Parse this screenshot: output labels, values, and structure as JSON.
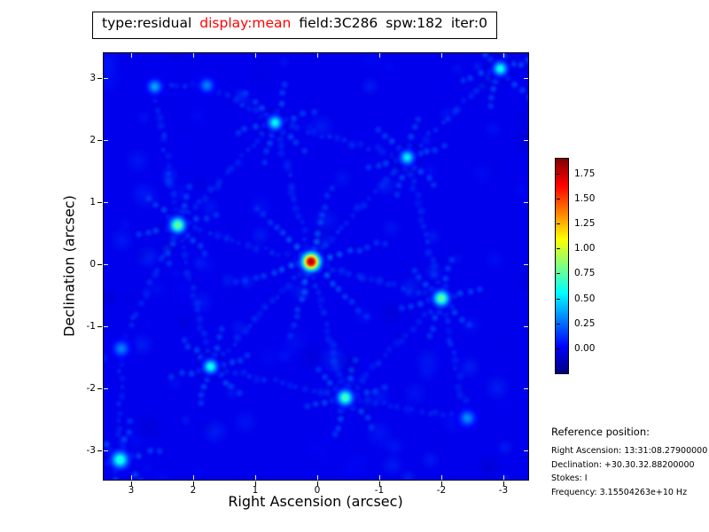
{
  "title": {
    "segments": [
      {
        "text": "type:residual",
        "color": "#000000"
      },
      {
        "text": "display:mean",
        "color": "#ff0000"
      },
      {
        "text": "field:3C286",
        "color": "#000000"
      },
      {
        "text": "spw:182",
        "color": "#000000"
      },
      {
        "text": "iter:0",
        "color": "#000000"
      }
    ]
  },
  "axes": {
    "xlabel": "Right Ascension (arcsec)",
    "ylabel": "Declination (arcsec)",
    "x_ticks": [
      3,
      2,
      1,
      0,
      -1,
      -2,
      -3
    ],
    "y_ticks": [
      3,
      2,
      1,
      0,
      -1,
      -2,
      -3
    ]
  },
  "colorbar": {
    "tick_labels": [
      "1.75",
      "1.50",
      "1.25",
      "1.00",
      "0.75",
      "0.50",
      "0.25",
      "0.00"
    ],
    "tick_values": [
      1.75,
      1.5,
      1.25,
      1.0,
      0.75,
      0.5,
      0.25,
      0.0
    ],
    "colormap": "jet",
    "vmin": -0.25,
    "vmax": 1.9
  },
  "reference": {
    "heading": "Reference position:",
    "lines": [
      "Right Ascension: 13:31:08.27900000",
      "Declination: +30.30.32.88200000",
      "Stokes: I",
      "Frequency: 3.15504263e+10 Hz"
    ]
  },
  "chart_data": {
    "type": "heatmap",
    "title": "type:residual display:mean field:3C286 spw:182 iter:0",
    "xlabel": "Right Ascension (arcsec)",
    "ylabel": "Declination (arcsec)",
    "xlim": [
      3.443,
      -3.4
    ],
    "ylim": [
      -3.471,
      3.4
    ],
    "x_ticks": [
      3,
      2,
      1,
      0,
      -1,
      -2,
      -3
    ],
    "y_ticks": [
      3,
      2,
      1,
      0,
      -1,
      -2,
      -3
    ],
    "colormap": "jet",
    "value_range": [
      -0.25,
      1.9
    ],
    "background_value": -0.02,
    "description": "Interferometric residual map: bright peak at field center with hexagonal lattice of sidelobe grating lobes over blue noise background",
    "sources": [
      {
        "ra": 0.1,
        "dec": 0.04,
        "peak": 1.9,
        "sigma": 6.0
      },
      {
        "ra": 2.25,
        "dec": 0.63,
        "peak": 0.82,
        "sigma": 5.5
      },
      {
        "ra": -2.0,
        "dec": -0.55,
        "peak": 0.8,
        "sigma": 5.5
      },
      {
        "ra": -0.45,
        "dec": -2.15,
        "peak": 0.74,
        "sigma": 5.5
      },
      {
        "ra": 1.72,
        "dec": -1.65,
        "peak": 0.62,
        "sigma": 5.0
      },
      {
        "ra": 0.68,
        "dec": 2.28,
        "peak": 0.58,
        "sigma": 5.0
      },
      {
        "ra": -1.45,
        "dec": 1.72,
        "peak": 0.55,
        "sigma": 5.0
      },
      {
        "ra": 3.18,
        "dec": -3.15,
        "peak": 0.66,
        "sigma": 6.0
      },
      {
        "ra": -2.95,
        "dec": 3.15,
        "peak": 0.6,
        "sigma": 5.0
      },
      {
        "ra": 2.62,
        "dec": 2.86,
        "peak": 0.38,
        "sigma": 5.0
      },
      {
        "ra": -2.42,
        "dec": -2.48,
        "peak": 0.33,
        "sigma": 5.5
      },
      {
        "ra": 1.78,
        "dec": 2.88,
        "peak": 0.3,
        "sigma": 5.0
      },
      {
        "ra": 3.16,
        "dec": -1.36,
        "peak": 0.3,
        "sigma": 5.5
      }
    ],
    "links": [
      [
        0,
        1
      ],
      [
        0,
        2
      ],
      [
        0,
        3
      ],
      [
        0,
        4
      ],
      [
        0,
        5
      ],
      [
        0,
        6
      ],
      [
        1,
        5
      ],
      [
        1,
        4
      ],
      [
        5,
        6
      ],
      [
        6,
        8
      ],
      [
        2,
        3
      ],
      [
        3,
        4
      ],
      [
        2,
        6
      ],
      [
        2,
        10
      ],
      [
        3,
        10
      ],
      [
        1,
        9
      ],
      [
        5,
        11
      ],
      [
        9,
        11
      ],
      [
        1,
        12
      ],
      [
        12,
        7
      ]
    ],
    "arm_angles_deg": [
      15,
      75,
      135,
      195,
      255,
      315
    ],
    "noise": {
      "seed": 7,
      "count": 170,
      "value_min": -0.14,
      "value_max": 0.2
    }
  }
}
